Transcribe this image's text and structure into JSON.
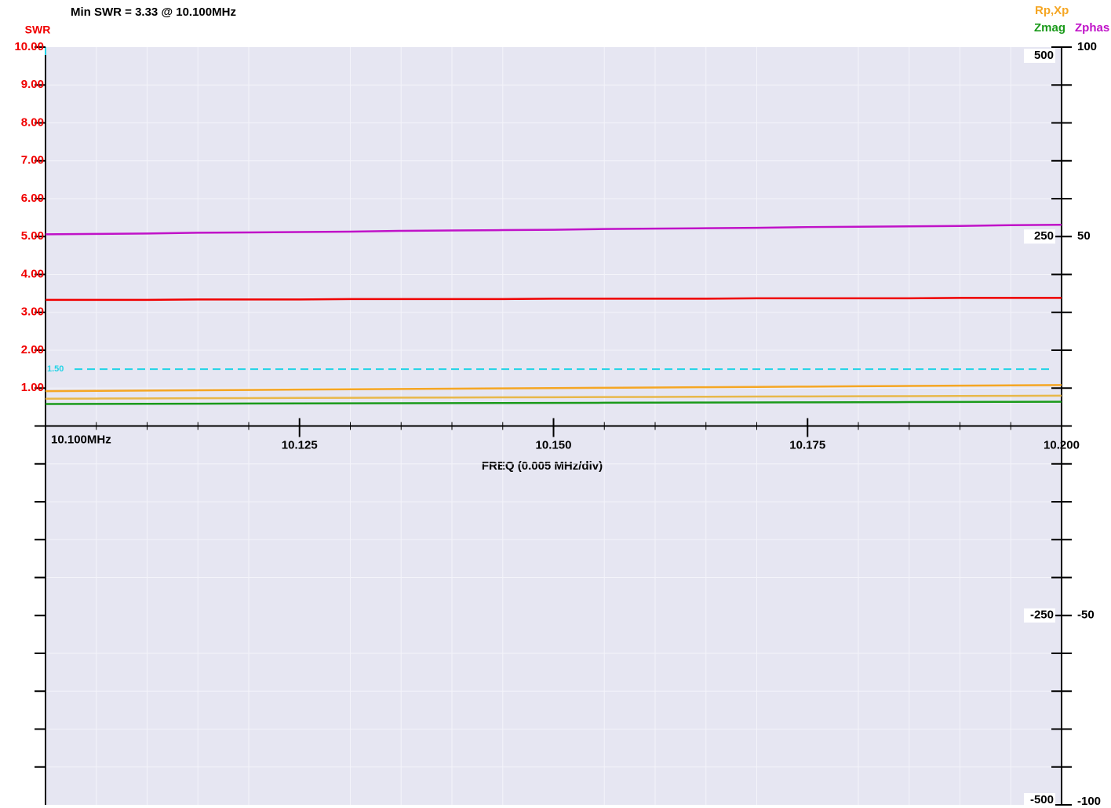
{
  "chart_data": {
    "type": "line",
    "title": "Min SWR =  3.33 @  10.100MHz",
    "ylabel": "SWR",
    "xlabel": "FREQ (0.005 MHz/div)",
    "x": [
      10.1,
      10.105,
      10.11,
      10.115,
      10.12,
      10.125,
      10.13,
      10.135,
      10.14,
      10.145,
      10.15,
      10.155,
      10.16,
      10.165,
      10.17,
      10.175,
      10.18,
      10.185,
      10.19,
      10.195,
      10.2
    ],
    "xlim": [
      10.1,
      10.2
    ],
    "xticks": [
      {
        "value": 10.1,
        "label": "10.100MHz"
      },
      10.125,
      {
        "value": 10.15,
        "label": "10.150"
      },
      10.175,
      {
        "value": 10.2,
        "label": "10.200"
      }
    ],
    "xminor_ticks": [
      10.105,
      10.11,
      10.115,
      10.12,
      10.13,
      10.135,
      10.14,
      10.145,
      10.155,
      10.16,
      10.165,
      10.17,
      10.18,
      10.185,
      10.19,
      10.195
    ],
    "ylim": [
      -10,
      10
    ],
    "yticks": [
      {
        "value": 10,
        "label": "10.00"
      },
      {
        "value": 9,
        "label": "9.00"
      },
      {
        "value": 8,
        "label": "8.00"
      },
      {
        "value": 7,
        "label": "7.00"
      },
      {
        "value": 6,
        "label": "6.00"
      },
      {
        "value": 5,
        "label": "5.00"
      },
      {
        "value": 4,
        "label": "4.00"
      },
      {
        "value": 3,
        "label": "3.00"
      },
      {
        "value": 2,
        "label": "2.00"
      },
      {
        "value": 1,
        "label": "1.00"
      }
    ],
    "yminor_ticks": [
      -1,
      -2,
      -3,
      -4,
      -5,
      -6,
      -7,
      -8,
      -9
    ],
    "y2lim": [
      -500,
      500
    ],
    "y2ticks": [
      500,
      250,
      -250,
      -500
    ],
    "y3lim": [
      -100,
      100
    ],
    "y3ticks": [
      100,
      50,
      -50,
      -100
    ],
    "y3minor_ticks": [
      90,
      80,
      70,
      60,
      40,
      30,
      20,
      10,
      -10,
      -20,
      -30,
      -40,
      -60,
      -70,
      -80,
      -90
    ],
    "grid": true,
    "ref_lines": [
      {
        "value": 1.5,
        "label": "1.50",
        "color": "#22d3e6"
      }
    ],
    "legend_corner": "top-right",
    "legend": [
      {
        "label": "Rp,Xp",
        "color": "#f5a623"
      },
      {
        "label": "Zmag",
        "color": "#1a9a1a"
      },
      {
        "label": "Zphas",
        "color": "#c012c8"
      }
    ],
    "series": [
      {
        "color": "#f00000",
        "axis": "y",
        "values": [
          3.33,
          3.33,
          3.33,
          3.34,
          3.34,
          3.34,
          3.35,
          3.35,
          3.35,
          3.35,
          3.36,
          3.36,
          3.36,
          3.36,
          3.37,
          3.37,
          3.37,
          3.37,
          3.38,
          3.38,
          3.38
        ]
      },
      {
        "color": "#c012c8",
        "axis": "y3",
        "values": [
          50.6,
          50.7,
          50.8,
          51.0,
          51.1,
          51.2,
          51.3,
          51.5,
          51.6,
          51.7,
          51.8,
          52.0,
          52.1,
          52.2,
          52.3,
          52.5,
          52.6,
          52.7,
          52.8,
          53.0,
          53.1
        ]
      },
      {
        "color": "#f5a623",
        "axis": "y2",
        "values": [
          46,
          46.4,
          46.8,
          47.2,
          47.6,
          48,
          48.4,
          48.8,
          49.2,
          49.6,
          50,
          50.4,
          50.8,
          51.2,
          51.6,
          52,
          52.4,
          52.8,
          53.2,
          53.6,
          54
        ]
      },
      {
        "color": "#e8b84a",
        "axis": "y2",
        "values": [
          36,
          36.2,
          36.4,
          36.6,
          36.8,
          37,
          37.2,
          37.4,
          37.6,
          37.8,
          38,
          38.2,
          38.4,
          38.6,
          38.8,
          39,
          39.2,
          39.4,
          39.6,
          39.8,
          40
        ]
      },
      {
        "color": "#1a9a1a",
        "axis": "y2",
        "values": [
          29,
          29.15,
          29.3,
          29.45,
          29.6,
          29.75,
          29.9,
          30.05,
          30.2,
          30.35,
          30.5,
          30.65,
          30.8,
          30.95,
          31.1,
          31.25,
          31.4,
          31.55,
          31.7,
          31.85,
          32
        ]
      }
    ]
  }
}
